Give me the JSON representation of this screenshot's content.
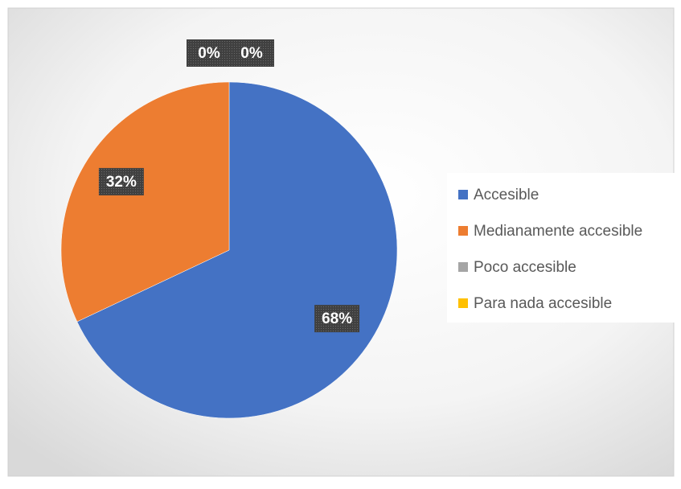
{
  "chart_data": {
    "type": "pie",
    "categories": [
      "Accesible",
      "Medianamente accesible",
      "Poco accesible",
      "Para nada accesible"
    ],
    "values": [
      68,
      32,
      0,
      0
    ],
    "value_labels": [
      "68%",
      "32%",
      "0%",
      "0%"
    ],
    "colors": [
      "#4472c4",
      "#ed7d31",
      "#a5a5a5",
      "#ffc000"
    ],
    "legend": "right"
  }
}
